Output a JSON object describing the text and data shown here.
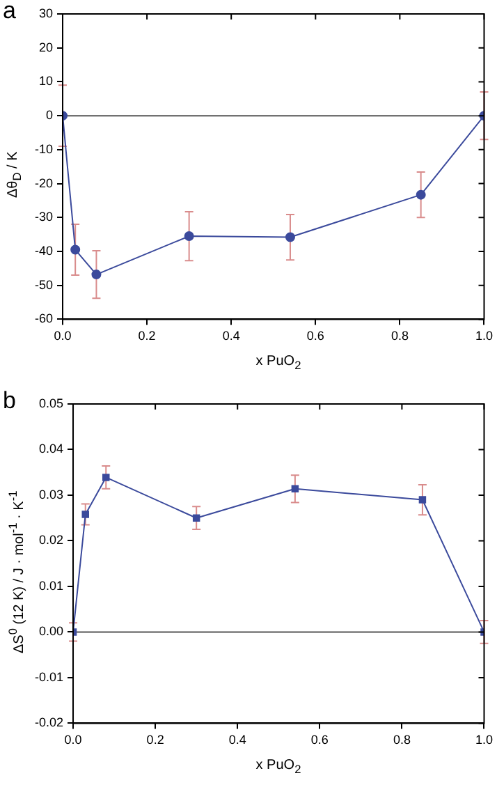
{
  "chart_data": [
    {
      "type": "line",
      "annotations": [
        "a"
      ],
      "xlabel": "x PuO$_{2}$",
      "ylabel": "Δθ$_{D}$ / K",
      "x": [
        0,
        0.03,
        0.08,
        0.3,
        0.54,
        0.85,
        1.0
      ],
      "series": [
        {
          "color": "#3b4a9c",
          "values": [
            0,
            -39.5,
            -46.8,
            -35.5,
            -35.8,
            -23.3,
            0
          ],
          "errors": [
            9,
            7.5,
            7,
            7.2,
            6.7,
            6.7,
            7
          ]
        }
      ],
      "xlim": [
        0,
        1
      ],
      "xticks": [
        {
          "value": 0,
          "label": "0.0"
        },
        {
          "value": 0.2,
          "label": "0.2"
        },
        {
          "value": 0.4,
          "label": "0.4"
        },
        {
          "value": 0.6,
          "label": "0.6"
        },
        {
          "value": 0.8,
          "label": "0.8"
        },
        {
          "value": 1,
          "label": "1.0"
        }
      ],
      "ylim": [
        -60,
        30
      ],
      "yticks": [
        -60,
        -50,
        -40,
        -30,
        -20,
        -10,
        0,
        10,
        20,
        30
      ],
      "ref_lines": [
        {
          "axis": "y",
          "value": 0,
          "color": "#555555"
        }
      ],
      "grid": false,
      "legend": false,
      "marker": "circle",
      "line_style": "solid"
    },
    {
      "type": "line",
      "annotations": [
        "b"
      ],
      "xlabel": "x PuO$_{2}$",
      "ylabel": "ΔS$^{0}$ (12 K) / J · mol$^{-1}$ · K$^{-1}$",
      "x": [
        0,
        0.03,
        0.08,
        0.3,
        0.54,
        0.85,
        1.0
      ],
      "series": [
        {
          "color": "#3b4a9c",
          "values": [
            0,
            0.0258,
            0.0339,
            0.025,
            0.0314,
            0.029,
            0
          ],
          "errors": [
            0.002,
            0.0023,
            0.0025,
            0.0025,
            0.003,
            0.0033,
            0.0025
          ]
        }
      ],
      "xlim": [
        0,
        1
      ],
      "xticks": [
        {
          "value": 0,
          "label": "0.0"
        },
        {
          "value": 0.2,
          "label": "0.2"
        },
        {
          "value": 0.4,
          "label": "0.4"
        },
        {
          "value": 0.6,
          "label": "0.6"
        },
        {
          "value": 0.8,
          "label": "0.8"
        },
        {
          "value": 1,
          "label": "1.0"
        }
      ],
      "ylim": [
        -0.02,
        0.05
      ],
      "yticks": [
        {
          "value": -0.02,
          "label": "-0.02"
        },
        {
          "value": -0.01,
          "label": "-0.01"
        },
        {
          "value": 0,
          "label": "0.00"
        },
        {
          "value": 0.01,
          "label": "0.01"
        },
        {
          "value": 0.02,
          "label": "0.02"
        },
        {
          "value": 0.03,
          "label": "0.03"
        },
        {
          "value": 0.04,
          "label": "0.04"
        },
        {
          "value": 0.05,
          "label": "0.05"
        }
      ],
      "ref_lines": [
        {
          "axis": "y",
          "value": 0,
          "color": "#555555"
        }
      ],
      "grid": false,
      "legend": false,
      "marker": "square",
      "line_style": "solid"
    }
  ]
}
